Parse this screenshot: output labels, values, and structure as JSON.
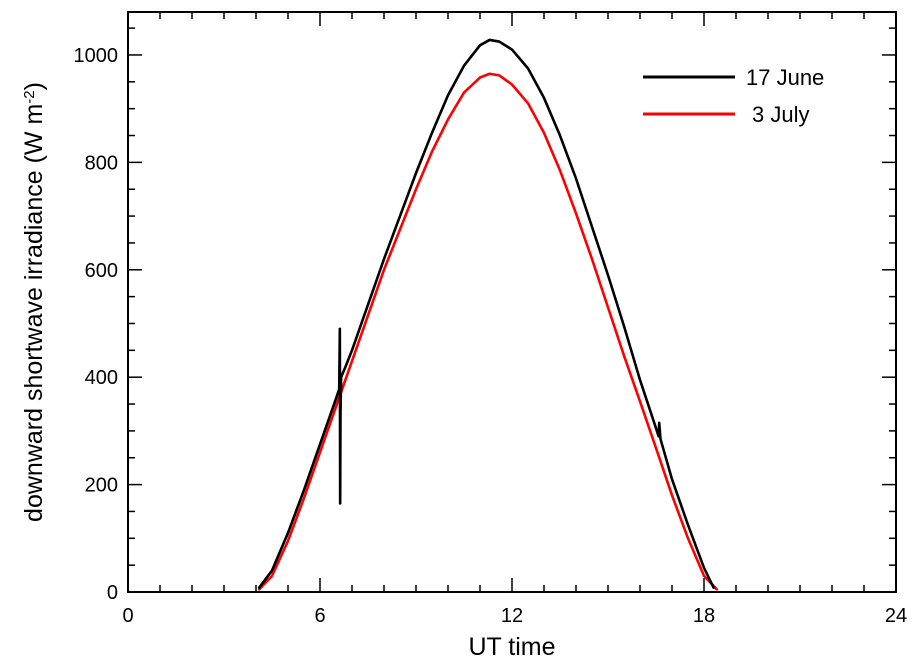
{
  "chart_data": {
    "type": "line",
    "xlabel": "UT time",
    "ylabel_main": "downward shortwave irradiance (W m",
    "ylabel_sup": "-2",
    "ylabel_end": ")",
    "xlim": [
      0,
      24
    ],
    "ylim": [
      0,
      1080
    ],
    "x_ticks": [
      0,
      6,
      12,
      18,
      24
    ],
    "x_minor_step": 1,
    "y_ticks": [
      0,
      200,
      400,
      600,
      800,
      1000
    ],
    "y_minor_step": 50,
    "grid": false,
    "legend_position": "top-right",
    "series": [
      {
        "name": "17 June",
        "color": "#000000",
        "points": [
          [
            4.1,
            8
          ],
          [
            4.5,
            40
          ],
          [
            5.0,
            110
          ],
          [
            5.5,
            190
          ],
          [
            6.0,
            275
          ],
          [
            6.5,
            360
          ],
          [
            6.6,
            378
          ],
          [
            6.62,
            490
          ],
          [
            6.63,
            165
          ],
          [
            6.64,
            330
          ],
          [
            6.66,
            400
          ],
          [
            6.8,
            420
          ],
          [
            7.0,
            450
          ],
          [
            7.5,
            535
          ],
          [
            8.0,
            620
          ],
          [
            8.5,
            700
          ],
          [
            9.0,
            780
          ],
          [
            9.5,
            855
          ],
          [
            10.0,
            925
          ],
          [
            10.5,
            980
          ],
          [
            11.0,
            1018
          ],
          [
            11.3,
            1028
          ],
          [
            11.6,
            1025
          ],
          [
            12.0,
            1010
          ],
          [
            12.5,
            975
          ],
          [
            13.0,
            920
          ],
          [
            13.5,
            850
          ],
          [
            14.0,
            770
          ],
          [
            14.5,
            680
          ],
          [
            15.0,
            590
          ],
          [
            15.5,
            495
          ],
          [
            16.0,
            395
          ],
          [
            16.5,
            305
          ],
          [
            16.58,
            290
          ],
          [
            16.6,
            315
          ],
          [
            16.62,
            300
          ],
          [
            16.64,
            285
          ],
          [
            17.0,
            210
          ],
          [
            17.5,
            125
          ],
          [
            18.0,
            45
          ],
          [
            18.3,
            8
          ]
        ]
      },
      {
        "name": "3 July",
        "color": "#ff0000",
        "points": [
          [
            4.1,
            5
          ],
          [
            4.5,
            30
          ],
          [
            5.0,
            95
          ],
          [
            5.5,
            175
          ],
          [
            6.0,
            260
          ],
          [
            6.5,
            345
          ],
          [
            7.0,
            430
          ],
          [
            7.5,
            515
          ],
          [
            8.0,
            600
          ],
          [
            8.5,
            675
          ],
          [
            9.0,
            750
          ],
          [
            9.5,
            820
          ],
          [
            10.0,
            880
          ],
          [
            10.5,
            930
          ],
          [
            11.0,
            958
          ],
          [
            11.3,
            965
          ],
          [
            11.6,
            962
          ],
          [
            12.0,
            945
          ],
          [
            12.5,
            910
          ],
          [
            13.0,
            855
          ],
          [
            13.5,
            785
          ],
          [
            14.0,
            705
          ],
          [
            14.5,
            620
          ],
          [
            15.0,
            530
          ],
          [
            15.5,
            440
          ],
          [
            16.0,
            355
          ],
          [
            16.5,
            268
          ],
          [
            17.0,
            180
          ],
          [
            17.5,
            100
          ],
          [
            18.0,
            30
          ],
          [
            18.4,
            5
          ]
        ]
      }
    ]
  }
}
